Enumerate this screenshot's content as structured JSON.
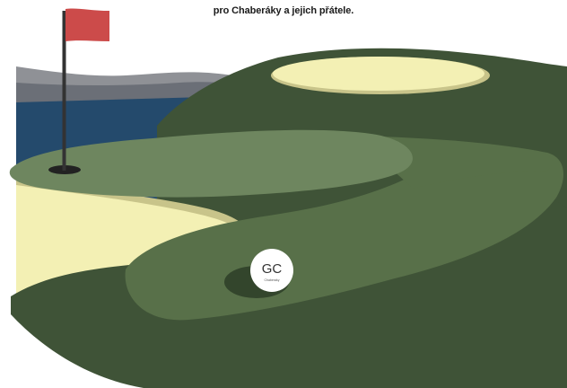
{
  "header": {
    "tagline": "pro Chaberáky a jejich přátele."
  },
  "badge": {
    "logo_letters": "GC",
    "logo_sub": "Chaberáky"
  },
  "colors": {
    "flag": "#cc4b4a",
    "pole": "#333333",
    "hole": "#222222",
    "sky_hill_light": "#8f9196",
    "sky_hill_dark": "#6b6f77",
    "water": "#244a6c",
    "hill_dark": "#3f5337",
    "fairway_mid": "#587049",
    "green_light": "#6e865f",
    "sand": "#f3f0b4",
    "sand_edge": "#c8c48a",
    "badge_bg": "#ffffff"
  },
  "icons": {
    "flag": "golf-flag-icon",
    "hole": "golf-hole-icon",
    "ball": "golf-ball-logo-icon"
  }
}
